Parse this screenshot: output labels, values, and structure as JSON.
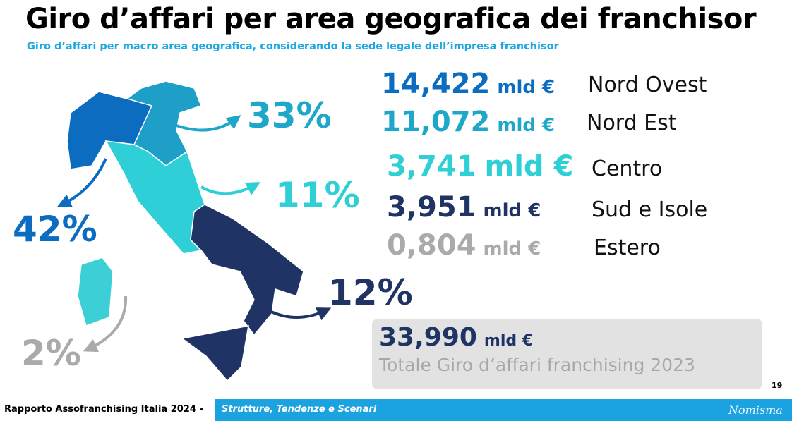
{
  "header": {
    "title": "Giro d’affari per area geografica dei franchisor",
    "subtitle": "Giro d’affari per macro area geografica, considerando la sede legale dell’impresa franchisor"
  },
  "regions": [
    {
      "value": "14,422",
      "unit": "mld €",
      "label": "Nord Ovest",
      "share": "42%"
    },
    {
      "value": "11,072",
      "unit": "mld €",
      "label": "Nord Est",
      "share": "33%"
    },
    {
      "value": "3,741",
      "unit": "mld €",
      "label": "Centro",
      "share": "11%"
    },
    {
      "value": "3,951",
      "unit": "mld €",
      "label": "Sud e Isole",
      "share": "12%"
    },
    {
      "value": "0,804",
      "unit": "mld €",
      "label": "Estero",
      "share": "2%"
    }
  ],
  "total": {
    "value": "33,990",
    "unit": "mld €",
    "label": "Totale Giro d’affari franchising 2023"
  },
  "page_number": "19",
  "footer": {
    "report": "Rapporto Assofranchising Italia 2024 -",
    "section": "Strutture, Tendenze e Scenari",
    "brand": "Nomisma"
  }
}
